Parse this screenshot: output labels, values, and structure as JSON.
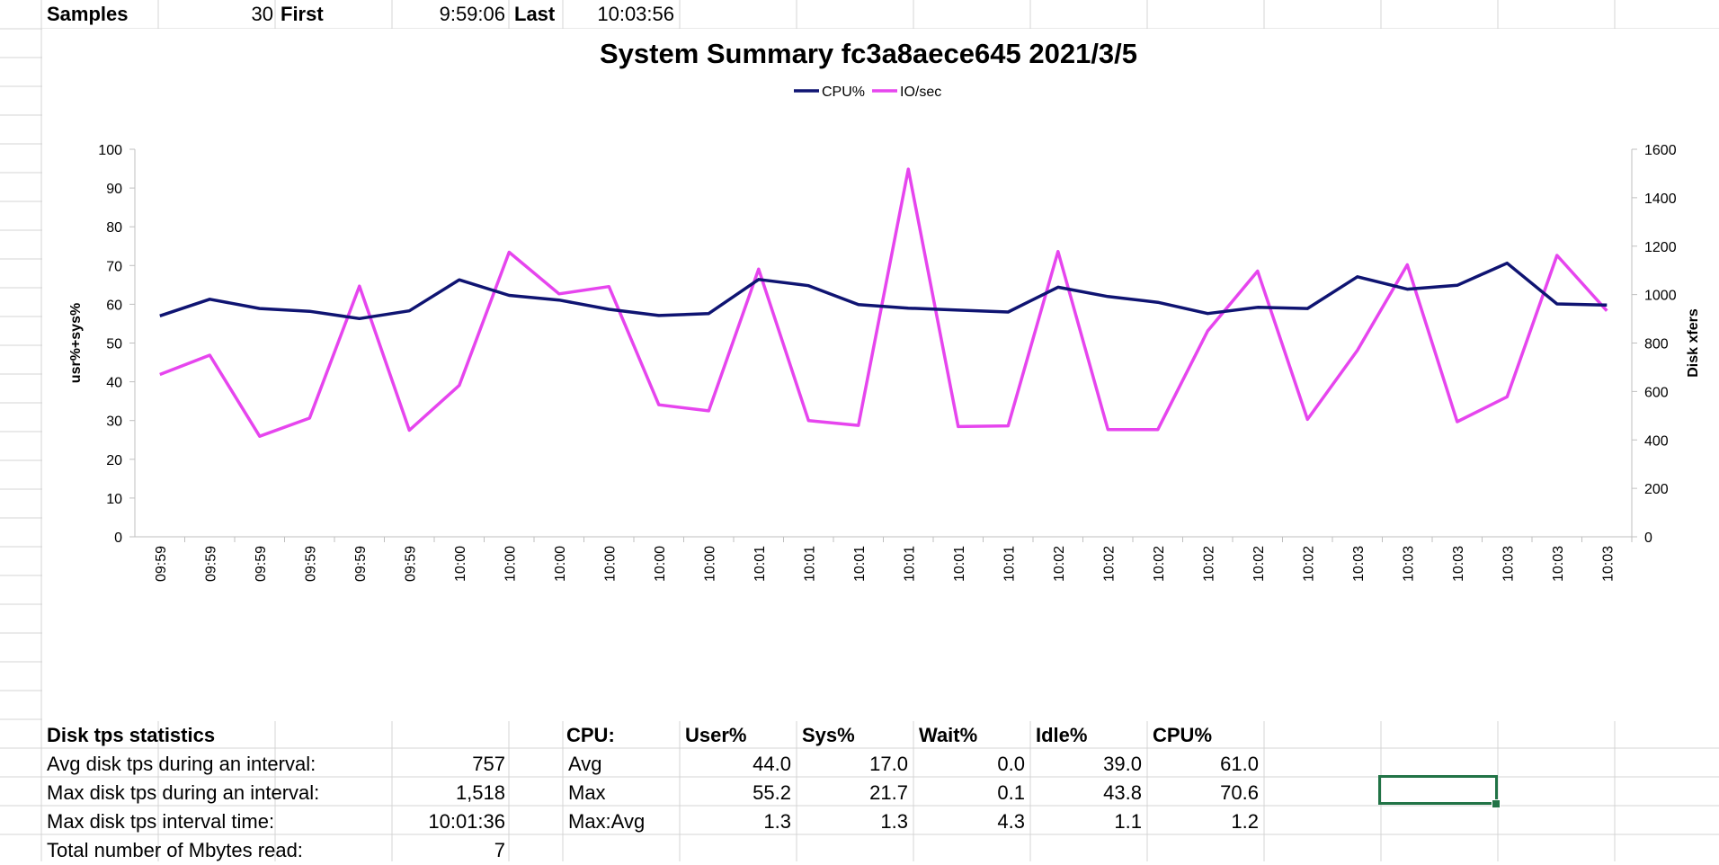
{
  "header": {
    "samples_label": "Samples",
    "samples_value": "30",
    "first_label": "First",
    "first_value": "9:59:06",
    "last_label": "Last",
    "last_value": "10:03:56"
  },
  "chart_data": {
    "type": "line",
    "title": "System Summary fc3a8aece645  2021/3/5",
    "ylabel": "usr%+sys%",
    "y2label": "Disk xfers",
    "ylim": [
      0,
      100
    ],
    "y2lim": [
      0,
      1600
    ],
    "yticks": [
      "0",
      "10",
      "20",
      "30",
      "40",
      "50",
      "60",
      "70",
      "80",
      "90",
      "100"
    ],
    "y2ticks": [
      "0",
      "200",
      "400",
      "600",
      "800",
      "1000",
      "1200",
      "1400",
      "1600"
    ],
    "legend_position": "top-center",
    "categories": [
      "09:59",
      "09:59",
      "09:59",
      "09:59",
      "09:59",
      "09:59",
      "10:00",
      "10:00",
      "10:00",
      "10:00",
      "10:00",
      "10:00",
      "10:01",
      "10:01",
      "10:01",
      "10:01",
      "10:01",
      "10:01",
      "10:02",
      "10:02",
      "10:02",
      "10:02",
      "10:02",
      "10:02",
      "10:03",
      "10:03",
      "10:03",
      "10:03",
      "10:03",
      "10:03"
    ],
    "series": [
      {
        "name": "CPU%",
        "axis": "left",
        "color": "#0f1472",
        "values": [
          57.0,
          61.3,
          58.9,
          58.2,
          56.3,
          58.3,
          66.3,
          62.3,
          61.1,
          58.7,
          57.1,
          57.6,
          66.4,
          64.8,
          59.9,
          59.0,
          58.5,
          58.0,
          64.4,
          62.0,
          60.5,
          57.6,
          59.2,
          58.9,
          67.1,
          63.9,
          64.9,
          70.6,
          60.1,
          59.8
        ]
      },
      {
        "name": "IO/sec",
        "axis": "right",
        "color": "#e645ee",
        "values": [
          670,
          750,
          415,
          490,
          1035,
          440,
          625,
          1175,
          1003,
          1033,
          545,
          520,
          1105,
          480,
          460,
          1518,
          455,
          458,
          1178,
          443,
          443,
          850,
          1097,
          485,
          770,
          1123,
          475,
          578,
          1162,
          933
        ]
      }
    ]
  },
  "stats": {
    "disk_title": "Disk tps statistics",
    "avg_disk_label": "Avg disk tps during an interval:",
    "avg_disk_value": "757",
    "max_disk_label": "Max disk tps during an interval:",
    "max_disk_value": "1,518",
    "max_time_label": "Max disk tps interval time:",
    "max_time_value": "10:01:36",
    "mbytes_label": "Total number of Mbytes read:",
    "mbytes_value": "7",
    "cpu_label": "CPU:",
    "headers": [
      "User%",
      "Sys%",
      "Wait%",
      "Idle%",
      "CPU%"
    ],
    "rows": [
      {
        "label": "Avg",
        "values": [
          "44.0",
          "17.0",
          "0.0",
          "39.0",
          "61.0"
        ]
      },
      {
        "label": "Max",
        "values": [
          "55.2",
          "21.7",
          "0.1",
          "43.8",
          "70.6"
        ]
      },
      {
        "label": "Max:Avg",
        "values": [
          "1.3",
          "1.3",
          "4.3",
          "1.1",
          "1.2"
        ]
      }
    ]
  }
}
